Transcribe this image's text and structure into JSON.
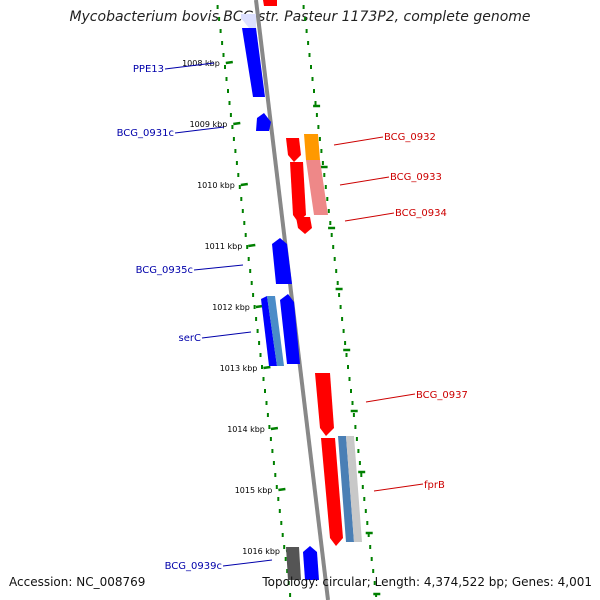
{
  "title": "Mycobacterium bovis BCG str. Pasteur 1173P2, complete genome",
  "footer": {
    "accession": "Accession: NC_008769",
    "info": "Topology: circular; Length: 4,374,522 bp; Genes: 4,001"
  },
  "colors": {
    "forward": "#ff0000",
    "reverse": "#0000ff",
    "backbone": "#888888",
    "ticks": "#008000",
    "forward_label": "#cc0000",
    "reverse_label": "#0000aa"
  },
  "kbp_ticks": [
    "1008 kbp",
    "1009 kbp",
    "1010 kbp",
    "1011 kbp",
    "1012 kbp",
    "1013 kbp",
    "1014 kbp",
    "1015 kbp",
    "1016 kbp"
  ],
  "gene_labels": {
    "reverse": [
      "PPE13",
      "BCG_0931c",
      "BCG_0935c",
      "serC",
      "BCG_0939c"
    ],
    "forward": [
      "BCG_0932",
      "BCG_0933",
      "BCG_0934",
      "BCG_0937",
      "fprB"
    ]
  }
}
